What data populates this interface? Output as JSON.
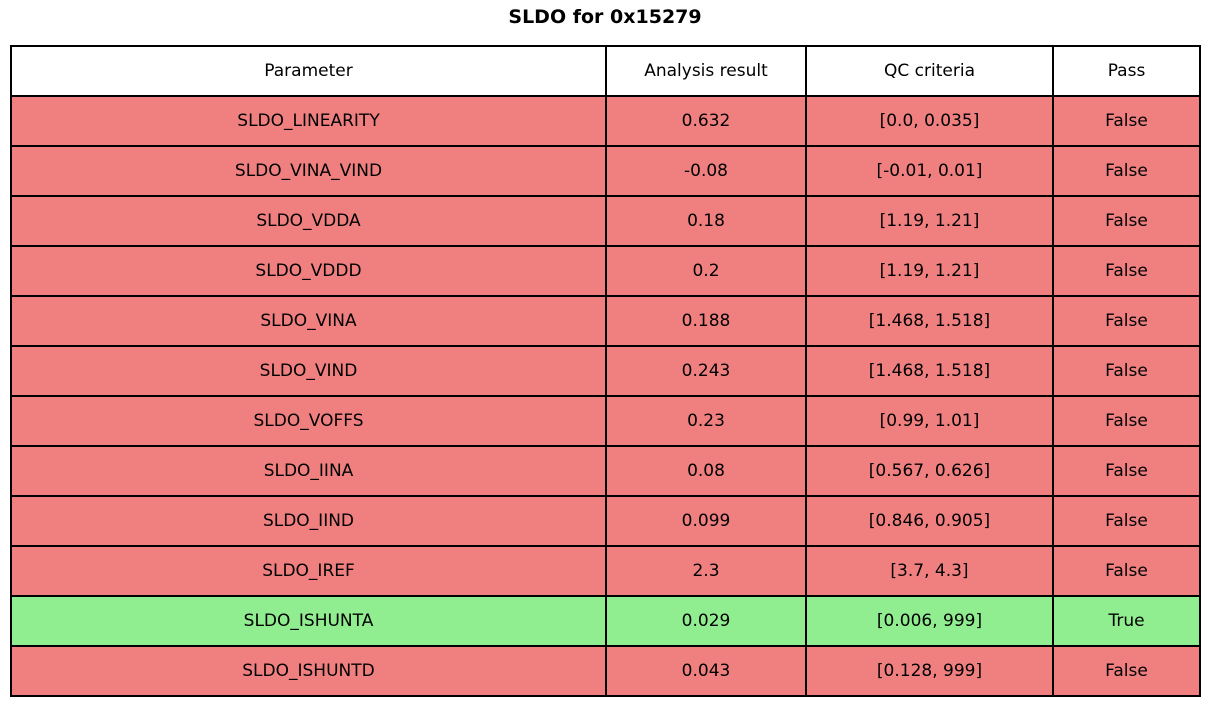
{
  "title": "SLDO for 0x15279",
  "colors": {
    "fail_bg": "#F08080",
    "pass_bg": "#90EE90",
    "header_bg": "#FFFFFF",
    "border": "#000000"
  },
  "chart_data": {
    "type": "table",
    "title": "SLDO for 0x15279",
    "columns": [
      "Parameter",
      "Analysis result",
      "QC criteria",
      "Pass"
    ],
    "rows": [
      {
        "parameter": "SLDO_LINEARITY",
        "result": "0.632",
        "criteria": "[0.0, 0.035]",
        "pass": "False"
      },
      {
        "parameter": "SLDO_VINA_VIND",
        "result": "-0.08",
        "criteria": "[-0.01, 0.01]",
        "pass": "False"
      },
      {
        "parameter": "SLDO_VDDA",
        "result": "0.18",
        "criteria": "[1.19, 1.21]",
        "pass": "False"
      },
      {
        "parameter": "SLDO_VDDD",
        "result": "0.2",
        "criteria": "[1.19, 1.21]",
        "pass": "False"
      },
      {
        "parameter": "SLDO_VINA",
        "result": "0.188",
        "criteria": "[1.468, 1.518]",
        "pass": "False"
      },
      {
        "parameter": "SLDO_VIND",
        "result": "0.243",
        "criteria": "[1.468, 1.518]",
        "pass": "False"
      },
      {
        "parameter": "SLDO_VOFFS",
        "result": "0.23",
        "criteria": "[0.99, 1.01]",
        "pass": "False"
      },
      {
        "parameter": "SLDO_IINA",
        "result": "0.08",
        "criteria": "[0.567, 0.626]",
        "pass": "False"
      },
      {
        "parameter": "SLDO_IIND",
        "result": "0.099",
        "criteria": "[0.846, 0.905]",
        "pass": "False"
      },
      {
        "parameter": "SLDO_IREF",
        "result": "2.3",
        "criteria": "[3.7, 4.3]",
        "pass": "False"
      },
      {
        "parameter": "SLDO_ISHUNTA",
        "result": "0.029",
        "criteria": "[0.006, 999]",
        "pass": "True"
      },
      {
        "parameter": "SLDO_ISHUNTD",
        "result": "0.043",
        "criteria": "[0.128, 999]",
        "pass": "False"
      }
    ]
  }
}
